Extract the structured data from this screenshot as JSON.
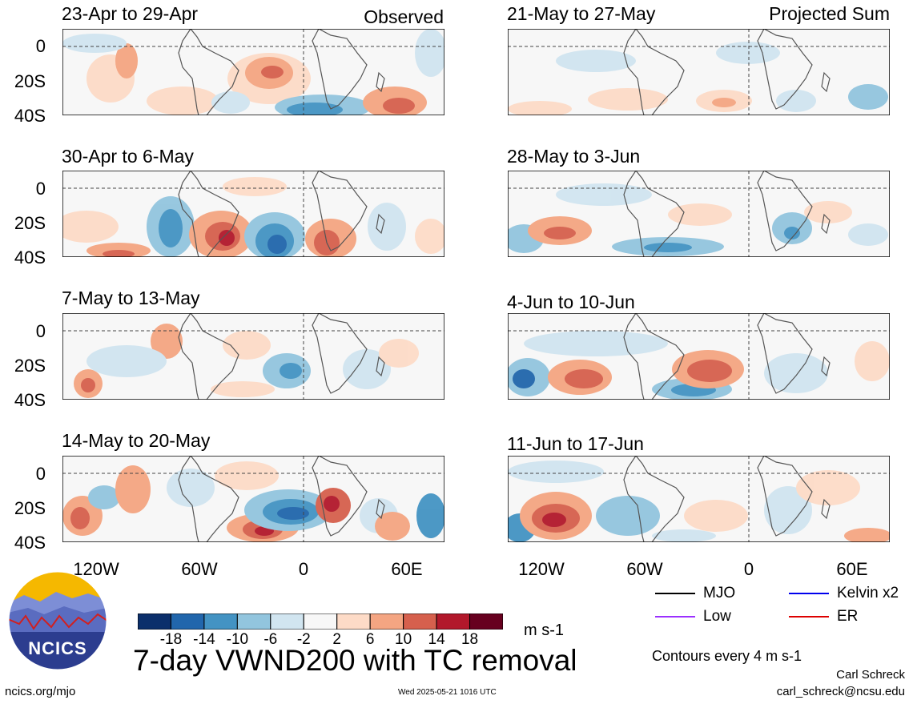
{
  "left_label": "Observed",
  "right_label": "Projected Sum",
  "left_panels": [
    {
      "title": "23-Apr to 29-Apr"
    },
    {
      "title": "30-Apr to 6-May"
    },
    {
      "title": "7-May to 13-May"
    },
    {
      "title": "14-May to 20-May"
    }
  ],
  "right_panels": [
    {
      "title": "21-May to 27-May"
    },
    {
      "title": "28-May to 3-Jun"
    },
    {
      "title": "4-Jun to 10-Jun"
    },
    {
      "title": "11-Jun to 17-Jun"
    }
  ],
  "lat_labels": [
    "0",
    "20S",
    "40S"
  ],
  "lon_labels": [
    "120W",
    "60W",
    "0",
    "60E"
  ],
  "colorbar": {
    "colors": [
      "#0b2f6b",
      "#2166ac",
      "#4393c3",
      "#92c5de",
      "#d1e5f0",
      "#f7f7f7",
      "#fddbc7",
      "#f4a582",
      "#d6604d",
      "#b2182b",
      "#67001f"
    ],
    "labels": [
      "-18",
      "-14",
      "-10",
      "-6",
      "-2",
      "2",
      "6",
      "10",
      "14",
      "18"
    ],
    "units": "m s-1"
  },
  "title": "7-day VWND200 with TC removal",
  "legend": [
    {
      "label": "MJO",
      "color": "#000000"
    },
    {
      "label": "Kelvin x2",
      "color": "#0000ee"
    },
    {
      "label": "Low",
      "color": "#9b30ff"
    },
    {
      "label": "ER",
      "color": "#dd0000"
    }
  ],
  "contour_note": "Contours every 4 m s-1",
  "author": "Carl Schreck",
  "email": "carl_schreck@ncsu.edu",
  "site": "ncics.org/mjo",
  "timestamp": "Wed 2025-05-21 1016 UTC",
  "logo_text": "NCICS",
  "chart_data": {
    "type": "heatmap",
    "title": "7-day VWND200 with TC removal",
    "units": "m s-1",
    "x_ticks": [
      "120W",
      "60W",
      "0",
      "60E"
    ],
    "y_ticks": [
      "0",
      "20S",
      "40S"
    ],
    "x_range": [
      "150W",
      "80E"
    ],
    "y_range": [
      "10N",
      "40S"
    ],
    "contour_interval": 4,
    "panels_observed": [
      "23-Apr to 29-Apr",
      "30-Apr to 6-May",
      "7-May to 13-May",
      "14-May to 20-May"
    ],
    "panels_projected": [
      "21-May to 27-May",
      "28-May to 3-Jun",
      "4-Jun to 10-Jun",
      "11-Jun to 17-Jun"
    ]
  }
}
